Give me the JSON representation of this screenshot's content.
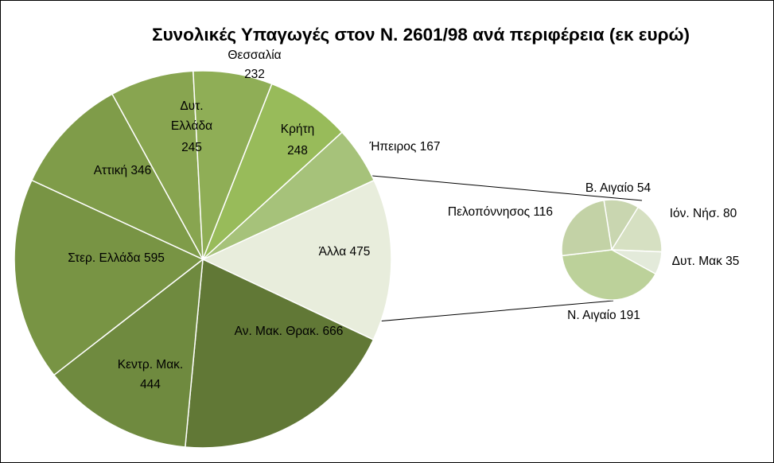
{
  "chart_data": {
    "type": "pie",
    "subtype": "pie-of-pie",
    "title": "Συνολικές Υπαγωγές στον Ν. 2601/98 ανά περιφέρεια (εκ ευρώ)",
    "main_pie": [
      {
        "label": "Άλλα",
        "value": 475,
        "color": "#e8eddc"
      },
      {
        "label": "Αν. Μακ. Θρακ.",
        "value": 666,
        "color": "#617836"
      },
      {
        "label": "Κεντρ. Μακ.",
        "value": 444,
        "color": "#6f8a3f"
      },
      {
        "label": "Στερ. Ελλάδα",
        "value": 595,
        "color": "#789444"
      },
      {
        "label": "Αττική",
        "value": 346,
        "color": "#7f9c49"
      },
      {
        "label": "Δυτ. Ελλάδα",
        "value": 245,
        "color": "#88a550"
      },
      {
        "label": "Θεσσαλία",
        "value": 232,
        "color": "#8fae56"
      },
      {
        "label": "Κρήτη",
        "value": 248,
        "color": "#98bb5a"
      },
      {
        "label": "Ήπειρος",
        "value": 167,
        "color": "#a6c27a"
      }
    ],
    "secondary_pie": [
      {
        "label": "Β. Αιγαίο",
        "value": 54,
        "color": "#c9d6b0"
      },
      {
        "label": "Ιόν. Νήσ.",
        "value": 80,
        "color": "#d6e0c2"
      },
      {
        "label": "Δυτ. Μακ",
        "value": 35,
        "color": "#e3eada"
      },
      {
        "label": "Ν. Αιγαίο",
        "value": 191,
        "color": "#bcd19a"
      },
      {
        "label": "Πελοπόννησος",
        "value": 116,
        "color": "#c3d2a6"
      }
    ]
  }
}
